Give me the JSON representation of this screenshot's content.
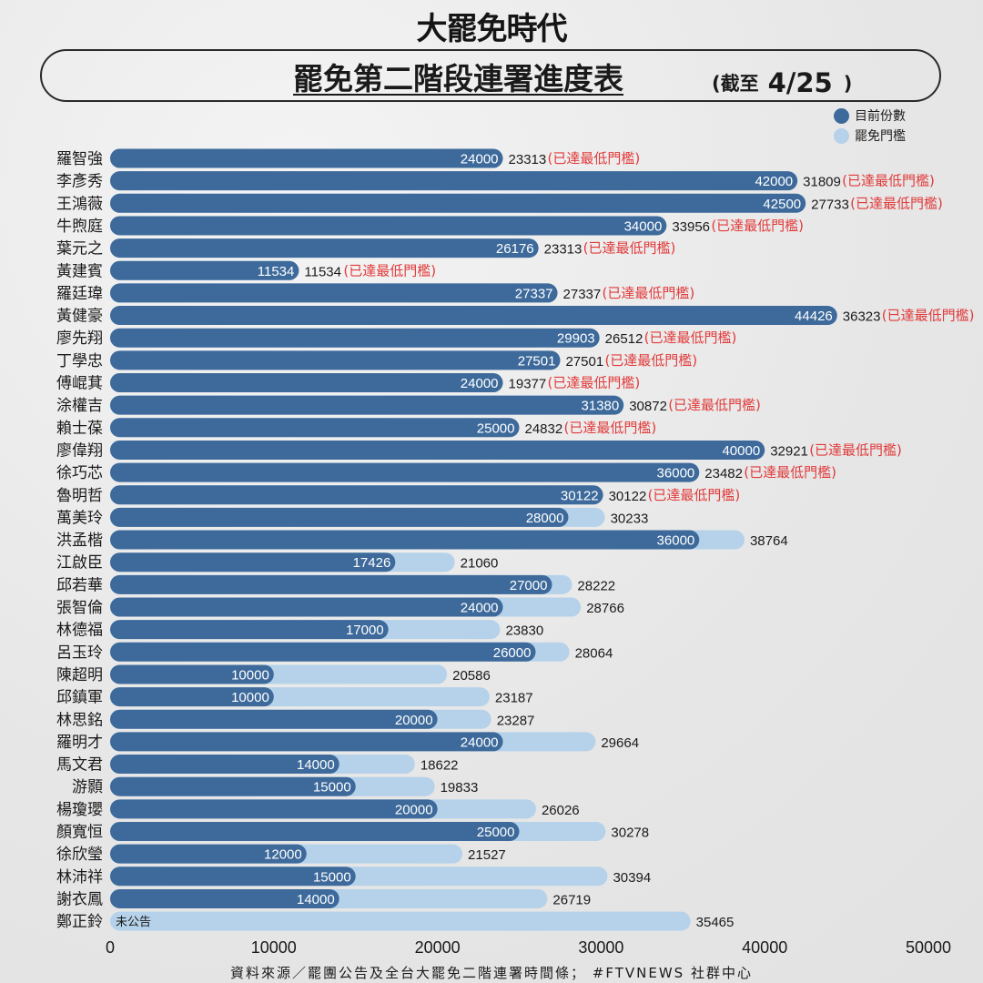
{
  "header": {
    "brand": "大罷免時代",
    "title": "罷免第二階段連署進度表",
    "note_prefix": "(截至",
    "note_date": "4/25",
    "note_suffix": ")"
  },
  "legend": {
    "items": [
      {
        "label": "目前份數",
        "color": "#3d6a9b"
      },
      {
        "label": "罷免門檻",
        "color": "#b5d2ea"
      }
    ]
  },
  "colors": {
    "current": "#3d6a9b",
    "threshold": "#b5d2ea",
    "reached_note": "#e23a3a"
  },
  "footer": "資料來源／罷團公告及全台大罷免二階連署時間條； #FTVNEWS 社群中心",
  "chart_data": {
    "type": "bar",
    "orientation": "horizontal",
    "xlim": [
      0,
      50000
    ],
    "xticks": [
      0,
      10000,
      20000,
      30000,
      40000,
      50000
    ],
    "reached_note": "(已達最低門檻)",
    "unannounced_label": "未公告",
    "rows": [
      {
        "name": "羅智強",
        "current": 24000,
        "threshold": 23313,
        "reached": true
      },
      {
        "name": "李彥秀",
        "current": 42000,
        "threshold": 31809,
        "reached": true
      },
      {
        "name": "王鴻薇",
        "current": 42500,
        "threshold": 27733,
        "reached": true
      },
      {
        "name": "牛煦庭",
        "current": 34000,
        "threshold": 33956,
        "reached": true
      },
      {
        "name": "葉元之",
        "current": 26176,
        "threshold": 23313,
        "reached": true
      },
      {
        "name": "黃建賓",
        "current": 11534,
        "threshold": 11534,
        "reached": true
      },
      {
        "name": "羅廷瑋",
        "current": 27337,
        "threshold": 27337,
        "reached": true
      },
      {
        "name": "黃健豪",
        "current": 44426,
        "threshold": 36323,
        "reached": true
      },
      {
        "name": "廖先翔",
        "current": 29903,
        "threshold": 26512,
        "reached": true
      },
      {
        "name": "丁學忠",
        "current": 27501,
        "threshold": 27501,
        "reached": true
      },
      {
        "name": "傅崐萁",
        "current": 24000,
        "threshold": 19377,
        "reached": true
      },
      {
        "name": "涂權吉",
        "current": 31380,
        "threshold": 30872,
        "reached": true
      },
      {
        "name": "賴士葆",
        "current": 25000,
        "threshold": 24832,
        "reached": true
      },
      {
        "name": "廖偉翔",
        "current": 40000,
        "threshold": 32921,
        "reached": true
      },
      {
        "name": "徐巧芯",
        "current": 36000,
        "threshold": 23482,
        "reached": true
      },
      {
        "name": "魯明哲",
        "current": 30122,
        "threshold": 30122,
        "reached": true
      },
      {
        "name": "萬美玲",
        "current": 28000,
        "threshold": 30233,
        "reached": false
      },
      {
        "name": "洪孟楷",
        "current": 36000,
        "threshold": 38764,
        "reached": false
      },
      {
        "name": "江啟臣",
        "current": 17426,
        "threshold": 21060,
        "reached": false
      },
      {
        "name": "邱若華",
        "current": 27000,
        "threshold": 28222,
        "reached": false
      },
      {
        "name": "張智倫",
        "current": 24000,
        "threshold": 28766,
        "reached": false
      },
      {
        "name": "林德福",
        "current": 17000,
        "threshold": 23830,
        "reached": false
      },
      {
        "name": "呂玉玲",
        "current": 26000,
        "threshold": 28064,
        "reached": false
      },
      {
        "name": "陳超明",
        "current": 10000,
        "threshold": 20586,
        "reached": false
      },
      {
        "name": "邱鎮軍",
        "current": 10000,
        "threshold": 23187,
        "reached": false
      },
      {
        "name": "林思銘",
        "current": 20000,
        "threshold": 23287,
        "reached": false
      },
      {
        "name": "羅明才",
        "current": 24000,
        "threshold": 29664,
        "reached": false
      },
      {
        "name": "馬文君",
        "current": 14000,
        "threshold": 18622,
        "reached": false
      },
      {
        "name": "游顥",
        "current": 15000,
        "threshold": 19833,
        "reached": false
      },
      {
        "name": "楊瓊瓔",
        "current": 20000,
        "threshold": 26026,
        "reached": false
      },
      {
        "name": "顏寬恒",
        "current": 25000,
        "threshold": 30278,
        "reached": false
      },
      {
        "name": "徐欣瑩",
        "current": 12000,
        "threshold": 21527,
        "reached": false
      },
      {
        "name": "林沛祥",
        "current": 15000,
        "threshold": 30394,
        "reached": false
      },
      {
        "name": "謝衣鳳",
        "current": 14000,
        "threshold": 26719,
        "reached": false
      },
      {
        "name": "鄭正鈴",
        "current": null,
        "threshold": 35465,
        "reached": false
      }
    ]
  }
}
